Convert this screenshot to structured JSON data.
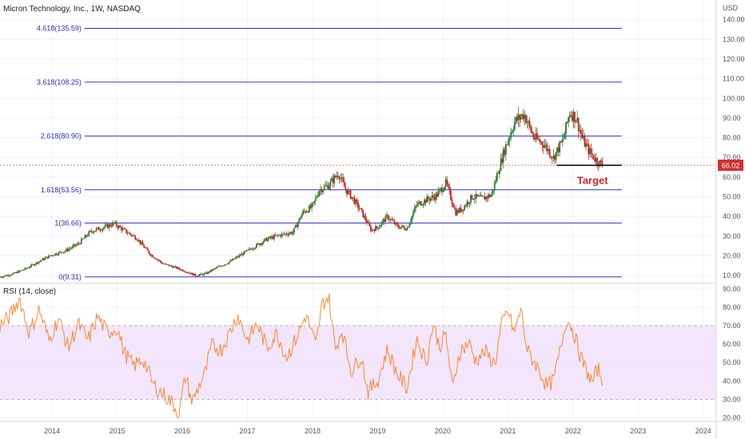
{
  "header": {
    "title": "Micron Technology, Inc., 1W, NASDAQ",
    "currency": "USD"
  },
  "colors": {
    "background": "#ffffff",
    "grid": "#f0f3fa",
    "fib_line": "#3030c8",
    "fib_text": "#2a2ab0",
    "candle_up": "#2e7d32",
    "candle_down": "#c62828",
    "price_badge": "#d32f2f",
    "price_dotted": "#e57373",
    "target_line": "#111111",
    "target_text": "#c62828",
    "rsi_line": "#f08c3c",
    "rsi_band": "#f3e5fb",
    "rsi_band_border": "#bdbdbd",
    "axis_text": "#555555"
  },
  "annotations": {
    "target_label": "Target",
    "last_price_label": "66.02"
  },
  "chart_data": [
    {
      "type": "candlestick",
      "title": "Micron Technology, Inc., 1W, NASDAQ",
      "x_ticks": [
        "2014",
        "2015",
        "2016",
        "2017",
        "2018",
        "2019",
        "2020",
        "2021",
        "2022",
        "2023",
        "2024"
      ],
      "x_range": [
        2013.2,
        2024.2
      ],
      "y_ticks": [
        "10.00",
        "20.00",
        "30.00",
        "40.00",
        "50.00",
        "60.00",
        "70.00",
        "80.00",
        "90.00",
        "100.00",
        "110.00",
        "120.00",
        "130.00",
        "140.00"
      ],
      "y_range": [
        6,
        150
      ],
      "grid": true,
      "last_price": 66.02,
      "close_path": [
        [
          2013.2,
          9.3
        ],
        [
          2013.4,
          10.8
        ],
        [
          2013.6,
          13.5
        ],
        [
          2013.8,
          17.2
        ],
        [
          2014.0,
          20.5
        ],
        [
          2014.2,
          22.5
        ],
        [
          2014.4,
          26.0
        ],
        [
          2014.6,
          32.5
        ],
        [
          2014.8,
          34.5
        ],
        [
          2014.95,
          36.4
        ],
        [
          2015.1,
          33.0
        ],
        [
          2015.3,
          29.0
        ],
        [
          2015.5,
          21.0
        ],
        [
          2015.7,
          16.0
        ],
        [
          2015.9,
          14.0
        ],
        [
          2016.1,
          11.5
        ],
        [
          2016.2,
          10.0
        ],
        [
          2016.35,
          10.8
        ],
        [
          2016.5,
          13.5
        ],
        [
          2016.7,
          16.5
        ],
        [
          2016.9,
          20.5
        ],
        [
          2017.1,
          24.5
        ],
        [
          2017.3,
          28.5
        ],
        [
          2017.5,
          30.5
        ],
        [
          2017.7,
          32.0
        ],
        [
          2017.85,
          42.0
        ],
        [
          2018.0,
          45.0
        ],
        [
          2018.1,
          53.5
        ],
        [
          2018.25,
          56.0
        ],
        [
          2018.4,
          62.0
        ],
        [
          2018.5,
          54.0
        ],
        [
          2018.6,
          50.0
        ],
        [
          2018.75,
          42.5
        ],
        [
          2018.9,
          33.0
        ],
        [
          2019.0,
          34.5
        ],
        [
          2019.15,
          40.0
        ],
        [
          2019.3,
          35.0
        ],
        [
          2019.45,
          34.0
        ],
        [
          2019.6,
          46.0
        ],
        [
          2019.75,
          48.5
        ],
        [
          2019.9,
          50.5
        ],
        [
          2020.05,
          57.0
        ],
        [
          2020.2,
          42.0
        ],
        [
          2020.3,
          44.0
        ],
        [
          2020.45,
          50.0
        ],
        [
          2020.6,
          49.0
        ],
        [
          2020.75,
          51.0
        ],
        [
          2020.85,
          63.0
        ],
        [
          2020.95,
          74.0
        ],
        [
          2021.1,
          88.0
        ],
        [
          2021.25,
          92.0
        ],
        [
          2021.4,
          80.0
        ],
        [
          2021.55,
          77.0
        ],
        [
          2021.7,
          70.0
        ],
        [
          2021.85,
          79.0
        ],
        [
          2021.95,
          93.0
        ],
        [
          2022.05,
          90.0
        ],
        [
          2022.15,
          79.0
        ],
        [
          2022.25,
          73.0
        ],
        [
          2022.35,
          69.0
        ],
        [
          2022.45,
          66.02
        ]
      ]
    },
    {
      "type": "line",
      "title": "RSI (14, close)",
      "x_range": [
        2013.2,
        2024.2
      ],
      "y_ticks": [
        "20.00",
        "30.00",
        "40.00",
        "50.00",
        "60.00",
        "70.00",
        "80.00",
        "90.00"
      ],
      "y_range": [
        18,
        93
      ],
      "band": [
        30,
        70
      ],
      "series": [
        {
          "points": [
            [
              2013.2,
              70
            ],
            [
              2013.35,
              75
            ],
            [
              2013.5,
              85
            ],
            [
              2013.65,
              66
            ],
            [
              2013.8,
              79
            ],
            [
              2013.95,
              62
            ],
            [
              2014.1,
              74
            ],
            [
              2014.25,
              58
            ],
            [
              2014.4,
              71
            ],
            [
              2014.55,
              62
            ],
            [
              2014.7,
              75
            ],
            [
              2014.85,
              66
            ],
            [
              2015.0,
              69
            ],
            [
              2015.1,
              56
            ],
            [
              2015.25,
              48
            ],
            [
              2015.4,
              52
            ],
            [
              2015.55,
              38
            ],
            [
              2015.7,
              33
            ],
            [
              2015.85,
              28
            ],
            [
              2015.95,
              22
            ],
            [
              2016.05,
              43
            ],
            [
              2016.15,
              28
            ],
            [
              2016.25,
              37
            ],
            [
              2016.35,
              44
            ],
            [
              2016.45,
              59
            ],
            [
              2016.6,
              57
            ],
            [
              2016.75,
              68
            ],
            [
              2016.85,
              76
            ],
            [
              2017.0,
              62
            ],
            [
              2017.15,
              71
            ],
            [
              2017.3,
              58
            ],
            [
              2017.45,
              66
            ],
            [
              2017.6,
              53
            ],
            [
              2017.75,
              63
            ],
            [
              2017.9,
              76
            ],
            [
              2018.05,
              59
            ],
            [
              2018.15,
              82
            ],
            [
              2018.25,
              86
            ],
            [
              2018.35,
              57
            ],
            [
              2018.45,
              68
            ],
            [
              2018.6,
              45
            ],
            [
              2018.75,
              54
            ],
            [
              2018.85,
              34
            ],
            [
              2019.0,
              40
            ],
            [
              2019.15,
              57
            ],
            [
              2019.3,
              44
            ],
            [
              2019.45,
              36
            ],
            [
              2019.6,
              63
            ],
            [
              2019.75,
              50
            ],
            [
              2019.85,
              71
            ],
            [
              2019.95,
              59
            ],
            [
              2020.05,
              65
            ],
            [
              2020.15,
              35
            ],
            [
              2020.25,
              55
            ],
            [
              2020.4,
              61
            ],
            [
              2020.5,
              51
            ],
            [
              2020.65,
              56
            ],
            [
              2020.8,
              49
            ],
            [
              2020.9,
              70
            ],
            [
              2021.0,
              78
            ],
            [
              2021.1,
              66
            ],
            [
              2021.2,
              79
            ],
            [
              2021.3,
              56
            ],
            [
              2021.45,
              48
            ],
            [
              2021.6,
              37
            ],
            [
              2021.7,
              40
            ],
            [
              2021.8,
              56
            ],
            [
              2021.9,
              74
            ],
            [
              2022.0,
              68
            ],
            [
              2022.1,
              55
            ],
            [
              2022.2,
              46
            ],
            [
              2022.3,
              39
            ],
            [
              2022.38,
              47
            ],
            [
              2022.45,
              41
            ]
          ]
        }
      ]
    }
  ],
  "fibonacci_levels": [
    {
      "label": "4.618(135.59)",
      "price": 135.59
    },
    {
      "label": "3.618(108.25)",
      "price": 108.25
    },
    {
      "label": "2.618(80.90)",
      "price": 80.9
    },
    {
      "label": "1.618(53.56)",
      "price": 53.56
    },
    {
      "label": "1(36.66)",
      "price": 36.66
    },
    {
      "label": "0(9.31)",
      "price": 9.31
    }
  ],
  "target_line": {
    "x_start": 2021.75,
    "x_end": 2022.75,
    "price": 66.02
  }
}
